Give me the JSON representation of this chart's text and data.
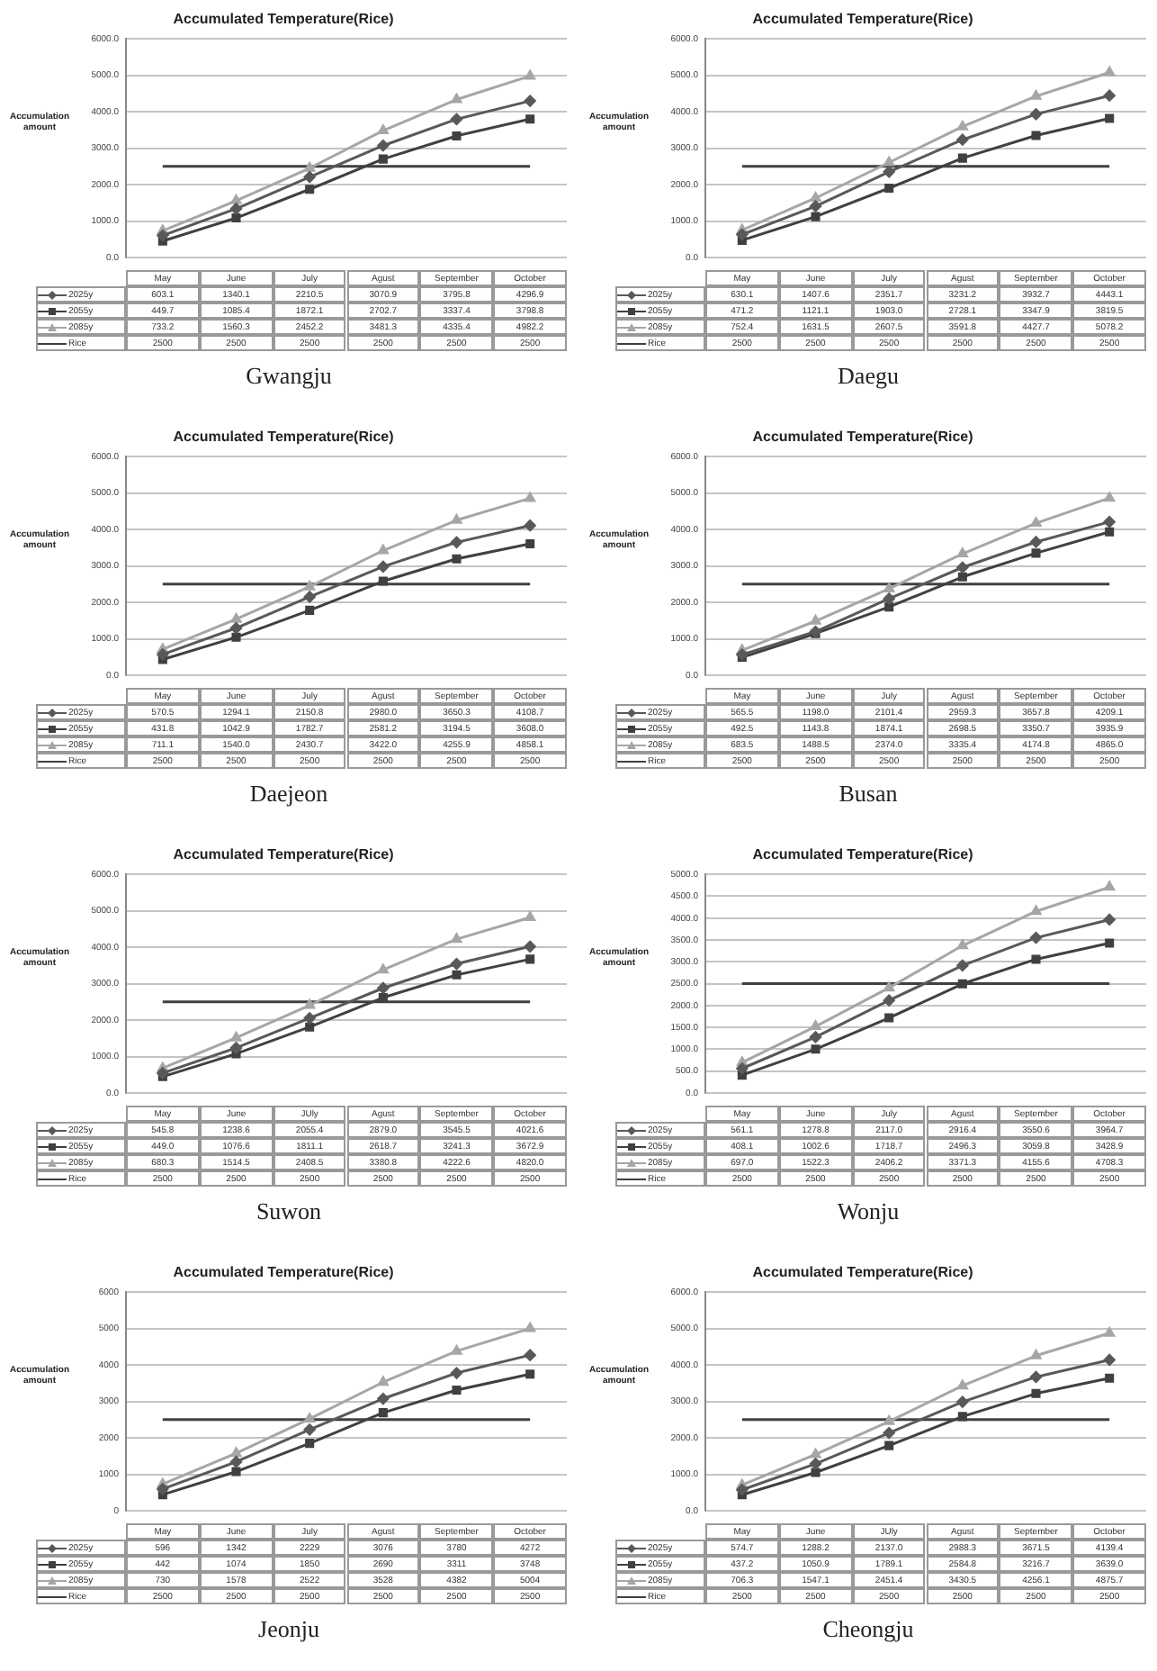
{
  "chart_data": [
    {
      "type": "line",
      "title": "Accumulated Temperature(Rice)",
      "ylabel": "Accumulation amount",
      "categories": [
        "May",
        "June",
        "July",
        "Agust",
        "September",
        "October"
      ],
      "ylim": [
        0,
        6000
      ],
      "yticks": [
        {
          "value": 0,
          "label": "0.0"
        },
        {
          "value": 1000,
          "label": "1000.0"
        },
        {
          "value": 2000,
          "label": "2000.0"
        },
        {
          "value": 3000,
          "label": "3000.0"
        },
        {
          "value": 4000,
          "label": "4000.0"
        },
        {
          "value": 5000,
          "label": "5000.0"
        },
        {
          "value": 6000,
          "label": "6000.0"
        }
      ],
      "grid": "y",
      "legend": "bottom",
      "annotations": [
        "Gwangju"
      ],
      "series": [
        {
          "name": "2025y",
          "color": "#595959",
          "marker": "diamond",
          "values": [
            603.1,
            1340.1,
            2210.5,
            3070.9,
            3795.8,
            4296.9
          ],
          "value_labels": [
            "603.1",
            "1340.1",
            "2210.5",
            "3070.9",
            "3795.8",
            "4296.9"
          ]
        },
        {
          "name": "2055y",
          "color": "#404040",
          "marker": "square",
          "values": [
            449.7,
            1085.4,
            1872.1,
            2702.7,
            3337.4,
            3798.8
          ],
          "value_labels": [
            "449.7",
            "1085.4",
            "1872.1",
            "2702.7",
            "3337.4",
            "3798.8"
          ]
        },
        {
          "name": "2085y",
          "color": "#a6a6a6",
          "marker": "triangle",
          "values": [
            733.2,
            1560.3,
            2452.2,
            3481.3,
            4335.4,
            4982.2
          ],
          "value_labels": [
            "733.2",
            "1560.3",
            "2452.2",
            "3481.3",
            "4335.4",
            "4982.2"
          ]
        },
        {
          "name": "Rice",
          "color": "#404040",
          "marker": "none",
          "values": [
            2500,
            2500,
            2500,
            2500,
            2500,
            2500
          ],
          "value_labels": [
            "2500",
            "2500",
            "2500",
            "2500",
            "2500",
            "2500"
          ]
        }
      ]
    },
    {
      "type": "line",
      "title": "Accumulated Temperature(Rice)",
      "ylabel": "Accumulation amount",
      "categories": [
        "May",
        "June",
        "July",
        "Agust",
        "September",
        "October"
      ],
      "ylim": [
        0,
        6000
      ],
      "yticks": [
        {
          "value": 0,
          "label": "0.0"
        },
        {
          "value": 1000,
          "label": "1000.0"
        },
        {
          "value": 2000,
          "label": "2000.0"
        },
        {
          "value": 3000,
          "label": "3000.0"
        },
        {
          "value": 4000,
          "label": "4000.0"
        },
        {
          "value": 5000,
          "label": "5000.0"
        },
        {
          "value": 6000,
          "label": "6000.0"
        }
      ],
      "grid": "y",
      "legend": "bottom",
      "annotations": [
        "Daegu"
      ],
      "series": [
        {
          "name": "2025y",
          "color": "#595959",
          "marker": "diamond",
          "values": [
            630.1,
            1407.6,
            2351.7,
            3231.2,
            3932.7,
            4443.1
          ],
          "value_labels": [
            "630.1",
            "1407.6",
            "2351.7",
            "3231.2",
            "3932.7",
            "4443.1"
          ]
        },
        {
          "name": "2055y",
          "color": "#404040",
          "marker": "square",
          "values": [
            471.2,
            1121.1,
            1903.0,
            2728.1,
            3347.9,
            3819.5
          ],
          "value_labels": [
            "471.2",
            "1121.1",
            "1903.0",
            "2728.1",
            "3347.9",
            "3819.5"
          ]
        },
        {
          "name": "2085y",
          "color": "#a6a6a6",
          "marker": "triangle",
          "values": [
            752.4,
            1631.5,
            2607.5,
            3591.8,
            4427.7,
            5078.2
          ],
          "value_labels": [
            "752.4",
            "1631.5",
            "2607.5",
            "3591.8",
            "4427.7",
            "5078.2"
          ]
        },
        {
          "name": "Rice",
          "color": "#404040",
          "marker": "none",
          "values": [
            2500,
            2500,
            2500,
            2500,
            2500,
            2500
          ],
          "value_labels": [
            "2500",
            "2500",
            "2500",
            "2500",
            "2500",
            "2500"
          ]
        }
      ]
    },
    {
      "type": "line",
      "title": "Accumulated Temperature(Rice)",
      "ylabel": "Accumulation amount",
      "categories": [
        "May",
        "June",
        "July",
        "Agust",
        "September",
        "October"
      ],
      "ylim": [
        0,
        6000
      ],
      "yticks": [
        {
          "value": 0,
          "label": "0.0"
        },
        {
          "value": 1000,
          "label": "1000.0"
        },
        {
          "value": 2000,
          "label": "2000.0"
        },
        {
          "value": 3000,
          "label": "3000.0"
        },
        {
          "value": 4000,
          "label": "4000.0"
        },
        {
          "value": 5000,
          "label": "5000.0"
        },
        {
          "value": 6000,
          "label": "6000.0"
        }
      ],
      "grid": "y",
      "legend": "bottom",
      "annotations": [
        "Daejeon"
      ],
      "series": [
        {
          "name": "2025y",
          "color": "#595959",
          "marker": "diamond",
          "values": [
            570.5,
            1294.1,
            2150.8,
            2980.0,
            3650.3,
            4108.7
          ],
          "value_labels": [
            "570.5",
            "1294.1",
            "2150.8",
            "2980.0",
            "3650.3",
            "4108.7"
          ]
        },
        {
          "name": "2055y",
          "color": "#404040",
          "marker": "square",
          "values": [
            431.8,
            1042.9,
            1782.7,
            2581.2,
            3194.5,
            3608.0
          ],
          "value_labels": [
            "431.8",
            "1042.9",
            "1782.7",
            "2581.2",
            "3194.5",
            "3608.0"
          ]
        },
        {
          "name": "2085y",
          "color": "#a6a6a6",
          "marker": "triangle",
          "values": [
            711.1,
            1540.0,
            2430.7,
            3422.0,
            4255.9,
            4858.1
          ],
          "value_labels": [
            "711.1",
            "1540.0",
            "2430.7",
            "3422.0",
            "4255.9",
            "4858.1"
          ]
        },
        {
          "name": "Rice",
          "color": "#404040",
          "marker": "none",
          "values": [
            2500,
            2500,
            2500,
            2500,
            2500,
            2500
          ],
          "value_labels": [
            "2500",
            "2500",
            "2500",
            "2500",
            "2500",
            "2500"
          ]
        }
      ]
    },
    {
      "type": "line",
      "title": "Accumulated Temperature(Rice)",
      "ylabel": "Accumulation amount",
      "categories": [
        "May",
        "June",
        "July",
        "Agust",
        "September",
        "October"
      ],
      "ylim": [
        0,
        6000
      ],
      "yticks": [
        {
          "value": 0,
          "label": "0.0"
        },
        {
          "value": 1000,
          "label": "1000.0"
        },
        {
          "value": 2000,
          "label": "2000.0"
        },
        {
          "value": 3000,
          "label": "3000.0"
        },
        {
          "value": 4000,
          "label": "4000.0"
        },
        {
          "value": 5000,
          "label": "5000.0"
        },
        {
          "value": 6000,
          "label": "6000.0"
        }
      ],
      "grid": "y",
      "legend": "bottom",
      "annotations": [
        "Busan"
      ],
      "series": [
        {
          "name": "2025y",
          "color": "#595959",
          "marker": "diamond",
          "values": [
            565.5,
            1198.0,
            2101.4,
            2959.3,
            3657.8,
            4209.1
          ],
          "value_labels": [
            "565.5",
            "1198.0",
            "2101.4",
            "2959.3",
            "3657.8",
            "4209.1"
          ]
        },
        {
          "name": "2055y",
          "color": "#404040",
          "marker": "square",
          "values": [
            492.5,
            1143.8,
            1874.1,
            2698.5,
            3350.7,
            3935.9
          ],
          "value_labels": [
            "492.5",
            "1143.8",
            "1874.1",
            "2698.5",
            "3350.7",
            "3935.9"
          ]
        },
        {
          "name": "2085y",
          "color": "#a6a6a6",
          "marker": "triangle",
          "values": [
            683.5,
            1488.5,
            2374.0,
            3335.4,
            4174.8,
            4865.0
          ],
          "value_labels": [
            "683.5",
            "1488.5",
            "2374.0",
            "3335.4",
            "4174.8",
            "4865.0"
          ]
        },
        {
          "name": "Rice",
          "color": "#404040",
          "marker": "none",
          "values": [
            2500,
            2500,
            2500,
            2500,
            2500,
            2500
          ],
          "value_labels": [
            "2500",
            "2500",
            "2500",
            "2500",
            "2500",
            "2500"
          ]
        }
      ]
    },
    {
      "type": "line",
      "title": "Accumulated Temperature(Rice)",
      "ylabel": "Accumulation amount",
      "categories": [
        "May",
        "June",
        "JUly",
        "Agust",
        "September",
        "October"
      ],
      "ylim": [
        0,
        6000
      ],
      "yticks": [
        {
          "value": 0,
          "label": "0.0"
        },
        {
          "value": 1000,
          "label": "1000.0"
        },
        {
          "value": 2000,
          "label": "2000.0"
        },
        {
          "value": 3000,
          "label": "3000.0"
        },
        {
          "value": 4000,
          "label": "4000.0"
        },
        {
          "value": 5000,
          "label": "5000.0"
        },
        {
          "value": 6000,
          "label": "6000.0"
        }
      ],
      "grid": "y",
      "legend": "bottom",
      "annotations": [
        "Suwon"
      ],
      "series": [
        {
          "name": "2025y",
          "color": "#595959",
          "marker": "diamond",
          "values": [
            545.8,
            1238.6,
            2055.4,
            2879.0,
            3545.5,
            4021.6
          ],
          "value_labels": [
            "545.8",
            "1238.6",
            "2055.4",
            "2879.0",
            "3545.5",
            "4021.6"
          ]
        },
        {
          "name": "2055y",
          "color": "#404040",
          "marker": "square",
          "values": [
            449.0,
            1076.6,
            1811.1,
            2618.7,
            3241.3,
            3672.9
          ],
          "value_labels": [
            "449.0",
            "1076.6",
            "1811.1",
            "2618.7",
            "3241.3",
            "3672.9"
          ]
        },
        {
          "name": "2085y",
          "color": "#a6a6a6",
          "marker": "triangle",
          "values": [
            680.3,
            1514.5,
            2408.5,
            3380.8,
            4222.6,
            4820.0
          ],
          "value_labels": [
            "680.3",
            "1514.5",
            "2408.5",
            "3380.8",
            "4222.6",
            "4820.0"
          ]
        },
        {
          "name": "Rice",
          "color": "#404040",
          "marker": "none",
          "values": [
            2500,
            2500,
            2500,
            2500,
            2500,
            2500
          ],
          "value_labels": [
            "2500",
            "2500",
            "2500",
            "2500",
            "2500",
            "2500"
          ]
        }
      ]
    },
    {
      "type": "line",
      "title": "Accumulated Temperature(Rice)",
      "ylabel": "Accumulation amount",
      "categories": [
        "May",
        "June",
        "July",
        "Agust",
        "September",
        "October"
      ],
      "ylim": [
        0,
        5000
      ],
      "yticks": [
        {
          "value": 0,
          "label": "0.0"
        },
        {
          "value": 500,
          "label": "500.0"
        },
        {
          "value": 1000,
          "label": "1000.0"
        },
        {
          "value": 1500,
          "label": "1500.0"
        },
        {
          "value": 2000,
          "label": "2000.0"
        },
        {
          "value": 2500,
          "label": "2500.0"
        },
        {
          "value": 3000,
          "label": "3000.0"
        },
        {
          "value": 3500,
          "label": "3500.0"
        },
        {
          "value": 4000,
          "label": "4000.0"
        },
        {
          "value": 4500,
          "label": "4500.0"
        },
        {
          "value": 5000,
          "label": "5000.0"
        }
      ],
      "grid": "y",
      "legend": "bottom",
      "annotations": [
        "Wonju"
      ],
      "series": [
        {
          "name": "2025y",
          "color": "#595959",
          "marker": "diamond",
          "values": [
            561.1,
            1278.8,
            2117.0,
            2916.4,
            3550.6,
            3964.7
          ],
          "value_labels": [
            "561.1",
            "1278.8",
            "2117.0",
            "2916.4",
            "3550.6",
            "3964.7"
          ]
        },
        {
          "name": "2055y",
          "color": "#404040",
          "marker": "square",
          "values": [
            408.1,
            1002.6,
            1718.7,
            2496.3,
            3059.8,
            3428.9
          ],
          "value_labels": [
            "408.1",
            "1002.6",
            "1718.7",
            "2496.3",
            "3059.8",
            "3428.9"
          ]
        },
        {
          "name": "2085y",
          "color": "#a6a6a6",
          "marker": "triangle",
          "values": [
            697.0,
            1522.3,
            2406.2,
            3371.3,
            4155.6,
            4708.3
          ],
          "value_labels": [
            "697.0",
            "1522.3",
            "2406.2",
            "3371.3",
            "4155.6",
            "4708.3"
          ]
        },
        {
          "name": "Rice",
          "color": "#404040",
          "marker": "none",
          "values": [
            2500,
            2500,
            2500,
            2500,
            2500,
            2500
          ],
          "value_labels": [
            "2500",
            "2500",
            "2500",
            "2500",
            "2500",
            "2500"
          ]
        }
      ]
    },
    {
      "type": "line",
      "title": "Accumulated Temperature(Rice)",
      "ylabel": "Accumulation amount",
      "categories": [
        "May",
        "June",
        "July",
        "Agust",
        "September",
        "October"
      ],
      "ylim": [
        0,
        6000
      ],
      "yticks": [
        0,
        1000,
        2000,
        3000,
        4000,
        5000,
        6000
      ],
      "grid": "y",
      "legend": "bottom",
      "annotations": [
        "Jeonju"
      ],
      "series": [
        {
          "name": "2025y",
          "color": "#595959",
          "marker": "diamond",
          "values": [
            596,
            1342,
            2229,
            3076,
            3780,
            4272
          ],
          "value_labels": [
            "596",
            "1342",
            "2229",
            "3076",
            "3780",
            "4272"
          ]
        },
        {
          "name": "2055y",
          "color": "#404040",
          "marker": "square",
          "values": [
            442,
            1074,
            1850,
            2690,
            3311,
            3748
          ],
          "value_labels": [
            "442",
            "1074",
            "1850",
            "2690",
            "3311",
            "3748"
          ]
        },
        {
          "name": "2085y",
          "color": "#a6a6a6",
          "marker": "triangle",
          "values": [
            730,
            1578,
            2522,
            3528,
            4382,
            5004
          ],
          "value_labels": [
            "730",
            "1578",
            "2522",
            "3528",
            "4382",
            "5004"
          ]
        },
        {
          "name": "Rice",
          "color": "#404040",
          "marker": "none",
          "values": [
            2500,
            2500,
            2500,
            2500,
            2500,
            2500
          ],
          "value_labels": [
            "2500",
            "2500",
            "2500",
            "2500",
            "2500",
            "2500"
          ]
        }
      ]
    },
    {
      "type": "line",
      "title": "Accumulated Temperature(Rice)",
      "ylabel": "Accumulation amount",
      "categories": [
        "May",
        "June",
        "JUly",
        "Agust",
        "September",
        "October"
      ],
      "ylim": [
        0,
        6000
      ],
      "yticks": [
        {
          "value": 0,
          "label": "0.0"
        },
        {
          "value": 1000,
          "label": "1000.0"
        },
        {
          "value": 2000,
          "label": "2000.0"
        },
        {
          "value": 3000,
          "label": "3000.0"
        },
        {
          "value": 4000,
          "label": "4000.0"
        },
        {
          "value": 5000,
          "label": "5000.0"
        },
        {
          "value": 6000,
          "label": "6000.0"
        }
      ],
      "grid": "y",
      "legend": "bottom",
      "annotations": [
        "Cheongju"
      ],
      "series": [
        {
          "name": "2025y",
          "color": "#595959",
          "marker": "diamond",
          "values": [
            574.7,
            1288.2,
            2137.0,
            2988.3,
            3671.5,
            4139.4
          ],
          "value_labels": [
            "574.7",
            "1288.2",
            "2137.0",
            "2988.3",
            "3671.5",
            "4139.4"
          ]
        },
        {
          "name": "2055y",
          "color": "#404040",
          "marker": "square",
          "values": [
            437.2,
            1050.9,
            1789.1,
            2584.8,
            3216.7,
            3639.0
          ],
          "value_labels": [
            "437.2",
            "1050.9",
            "1789.1",
            "2584.8",
            "3216.7",
            "3639.0"
          ]
        },
        {
          "name": "2085y",
          "color": "#a6a6a6",
          "marker": "triangle",
          "values": [
            706.3,
            1547.1,
            2451.4,
            3430.5,
            4256.1,
            4875.7
          ],
          "value_labels": [
            "706.3",
            "1547.1",
            "2451.4",
            "3430.5",
            "4256.1",
            "4875.7"
          ]
        },
        {
          "name": "Rice",
          "color": "#404040",
          "marker": "none",
          "values": [
            2500,
            2500,
            2500,
            2500,
            2500,
            2500
          ],
          "value_labels": [
            "2500",
            "2500",
            "2500",
            "2500",
            "2500",
            "2500"
          ]
        }
      ]
    }
  ]
}
